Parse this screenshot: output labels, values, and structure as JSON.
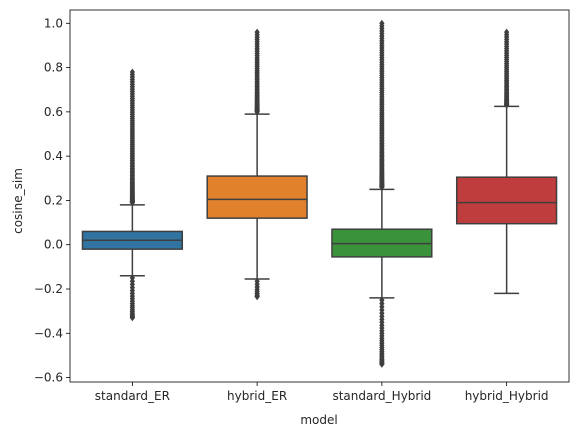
{
  "chart_data": {
    "type": "box",
    "xlabel": "model",
    "ylabel": "cosine_sim",
    "ylim": [
      -0.62,
      1.06
    ],
    "yticks": [
      -0.6,
      -0.4,
      -0.2,
      0.0,
      0.2,
      0.4,
      0.6,
      0.8,
      1.0
    ],
    "ytick_labels": [
      "−0.6",
      "−0.4",
      "−0.2",
      "0.0",
      "0.2",
      "0.4",
      "0.6",
      "0.8",
      "1.0"
    ],
    "categories": [
      "standard_ER",
      "hybrid_ER",
      "standard_Hybrid",
      "hybrid_Hybrid"
    ],
    "grid": false,
    "boxes": [
      {
        "name": "standard_ER",
        "color": "#3274a1",
        "whisker_low": -0.14,
        "q1": -0.02,
        "median": 0.02,
        "q3": 0.06,
        "whisker_high": 0.18,
        "outliers_high_range": [
          0.19,
          0.78
        ],
        "outliers_low_range": [
          -0.33,
          -0.15
        ]
      },
      {
        "name": "hybrid_ER",
        "color": "#e1812c",
        "whisker_low": -0.155,
        "q1": 0.12,
        "median": 0.205,
        "q3": 0.31,
        "whisker_high": 0.59,
        "outliers_high_range": [
          0.6,
          0.96
        ],
        "outliers_low_range": [
          -0.235,
          -0.165
        ]
      },
      {
        "name": "standard_Hybrid",
        "color": "#3a923a",
        "whisker_low": -0.24,
        "q1": -0.055,
        "median": 0.005,
        "q3": 0.07,
        "whisker_high": 0.25,
        "outliers_high_range": [
          0.26,
          1.0
        ],
        "outliers_low_range": [
          -0.54,
          -0.25
        ]
      },
      {
        "name": "hybrid_Hybrid",
        "color": "#c03d3e",
        "whisker_low": -0.22,
        "q1": 0.095,
        "median": 0.19,
        "q3": 0.305,
        "whisker_high": 0.625,
        "outliers_high_range": [
          0.63,
          0.96
        ],
        "outliers_low_range": []
      }
    ]
  }
}
